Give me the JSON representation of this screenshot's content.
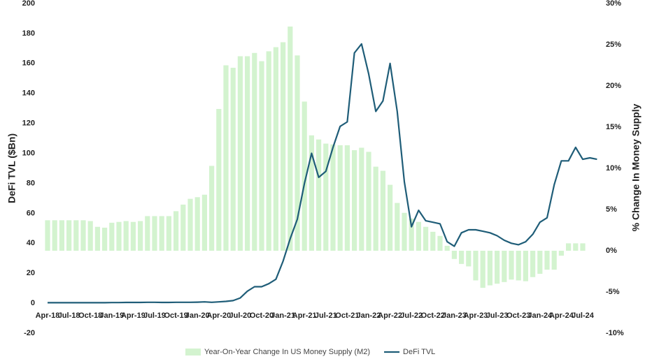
{
  "chart_data": {
    "type": "bar_line",
    "y_label": "DeFi TVL ($Bn)",
    "y2_label": "% Change In Money Supply",
    "categories": [
      "Apr-18",
      null,
      null,
      "Jul-18",
      null,
      null,
      "Oct-18",
      null,
      null,
      "Jan-19",
      null,
      null,
      "Apr-19",
      null,
      null,
      "Jul-19",
      null,
      null,
      "Oct-19",
      null,
      null,
      "Jan-20",
      null,
      null,
      "Apr-20",
      null,
      null,
      "Jul-20",
      null,
      null,
      "Oct-20",
      null,
      null,
      "Jan-21",
      null,
      null,
      "Apr-21",
      null,
      null,
      "Jul-21",
      null,
      null,
      "Oct-21",
      null,
      null,
      "Jan-22",
      null,
      null,
      "Apr-22",
      null,
      null,
      "Jul-22",
      null,
      null,
      "Oct-22",
      null,
      null,
      "Jan-23",
      null,
      null,
      "Apr-23",
      null,
      null,
      "Jul-23",
      null,
      null,
      "Oct-23",
      null,
      null,
      "Jan-24",
      null,
      null,
      "Apr-24",
      null,
      null,
      "Jul-24",
      null,
      null
    ],
    "series": [
      {
        "name": "Year-On-Year Change In US Money Supply (M2)",
        "type": "bar",
        "axis": "y2",
        "color": "#d3f3cf",
        "values": [
          3.7,
          3.7,
          3.7,
          3.7,
          3.7,
          3.7,
          3.6,
          2.9,
          2.8,
          3.4,
          3.5,
          3.6,
          3.5,
          3.6,
          4.2,
          4.2,
          4.2,
          4.2,
          4.8,
          5.6,
          6.3,
          6.5,
          6.8,
          10.3,
          17.2,
          22.5,
          22.2,
          23.6,
          23.6,
          24.0,
          23.0,
          24.2,
          24.7,
          25.3,
          27.2,
          23.7,
          18.1,
          14.0,
          13.5,
          13.0,
          12.9,
          12.8,
          12.8,
          12.2,
          12.5,
          12.0,
          10.2,
          9.7,
          8.0,
          5.8,
          4.6,
          3.9,
          3.5,
          2.9,
          2.3,
          1.8,
          0.6,
          -1.0,
          -1.6,
          -1.9,
          -3.6,
          -4.5,
          -4.2,
          -4.0,
          -3.8,
          -3.5,
          -3.6,
          -3.7,
          -3.2,
          -2.8,
          -2.3,
          -2.3,
          -0.6,
          0.9,
          0.9,
          0.9,
          null,
          null
        ]
      },
      {
        "name": "DeFi TVL",
        "type": "line",
        "axis": "y",
        "color": "#1f5d78",
        "values": [
          0.3,
          0.3,
          0.3,
          0.3,
          0.3,
          0.3,
          0.3,
          0.3,
          0.3,
          0.4,
          0.4,
          0.5,
          0.5,
          0.5,
          0.6,
          0.6,
          0.5,
          0.5,
          0.6,
          0.6,
          0.6,
          0.7,
          0.9,
          0.6,
          0.9,
          1.2,
          1.7,
          3.5,
          8,
          11,
          11,
          13,
          16,
          28,
          43,
          56,
          80,
          100,
          84,
          88,
          104,
          118,
          121,
          167,
          173,
          153,
          128,
          135,
          160,
          128,
          81,
          51,
          62,
          55,
          54,
          53,
          41,
          38,
          47,
          49,
          49,
          48,
          47,
          45,
          42,
          40,
          39,
          41,
          46,
          54,
          57,
          79,
          95,
          95,
          104,
          96,
          97,
          96
        ]
      }
    ],
    "ylim": [
      -20,
      200
    ],
    "yticks": [
      -20,
      0,
      20,
      40,
      60,
      80,
      100,
      120,
      140,
      160,
      180,
      200
    ],
    "y2lim": [
      -10,
      30
    ],
    "y2ticks": [
      {
        "value": -10,
        "label": "-10%"
      },
      {
        "value": -5,
        "label": "-5%"
      },
      {
        "value": 0,
        "label": "0%"
      },
      {
        "value": 5,
        "label": "5%"
      },
      {
        "value": 10,
        "label": "10%"
      },
      {
        "value": 15,
        "label": "15%"
      },
      {
        "value": 20,
        "label": "20%"
      },
      {
        "value": 25,
        "label": "25%"
      },
      {
        "value": 30,
        "label": "30%"
      }
    ],
    "y_label_color": "#2e75b6",
    "y2_label_color": "#70ad47"
  }
}
